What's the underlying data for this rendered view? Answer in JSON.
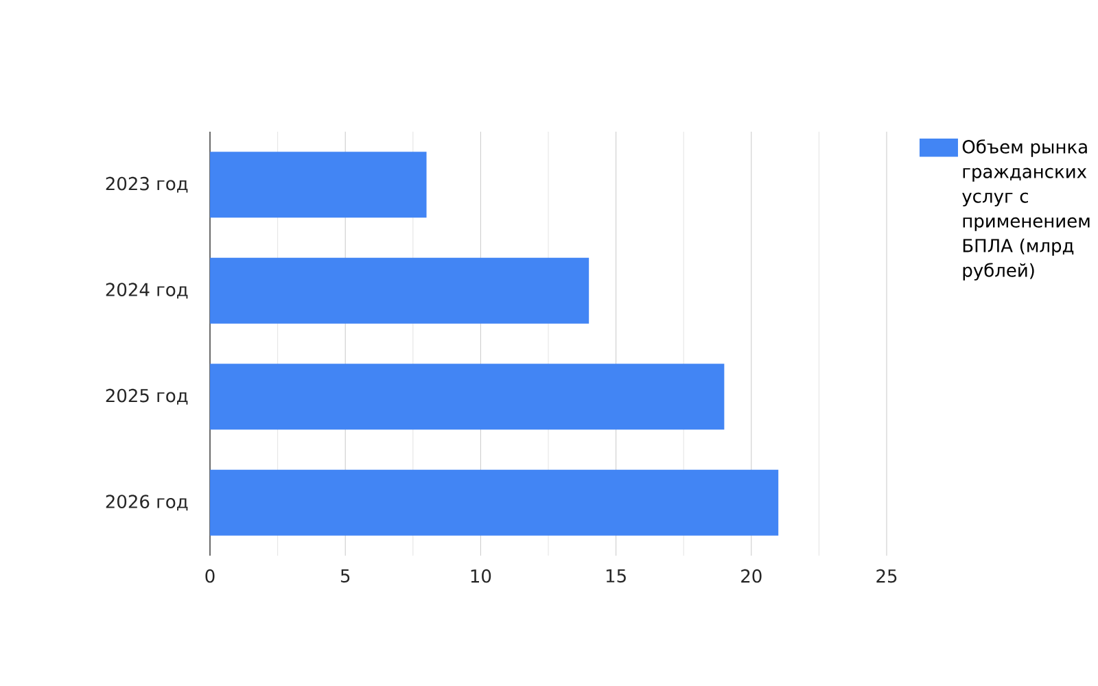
{
  "chart_data": {
    "type": "bar",
    "orientation": "horizontal",
    "categories": [
      "2023 год",
      "2024 год",
      "2025 год",
      "2026 год"
    ],
    "series": [
      {
        "name": "Объем рынка гражданских услуг с применением БПЛА (млрд рублей)",
        "color": "#4285f4",
        "values": [
          8,
          14,
          19,
          21
        ]
      }
    ],
    "xlim": [
      0,
      25
    ],
    "xticks": [
      0,
      {
        "value": 2.5,
        "label": null
      },
      5,
      {
        "value": 7.5,
        "label": null
      },
      10,
      {
        "value": 12.5,
        "label": null
      },
      15,
      {
        "value": 17.5,
        "label": null
      },
      20,
      {
        "value": 22.5,
        "label": null
      },
      25
    ],
    "grid": "x",
    "legend": "top right"
  }
}
